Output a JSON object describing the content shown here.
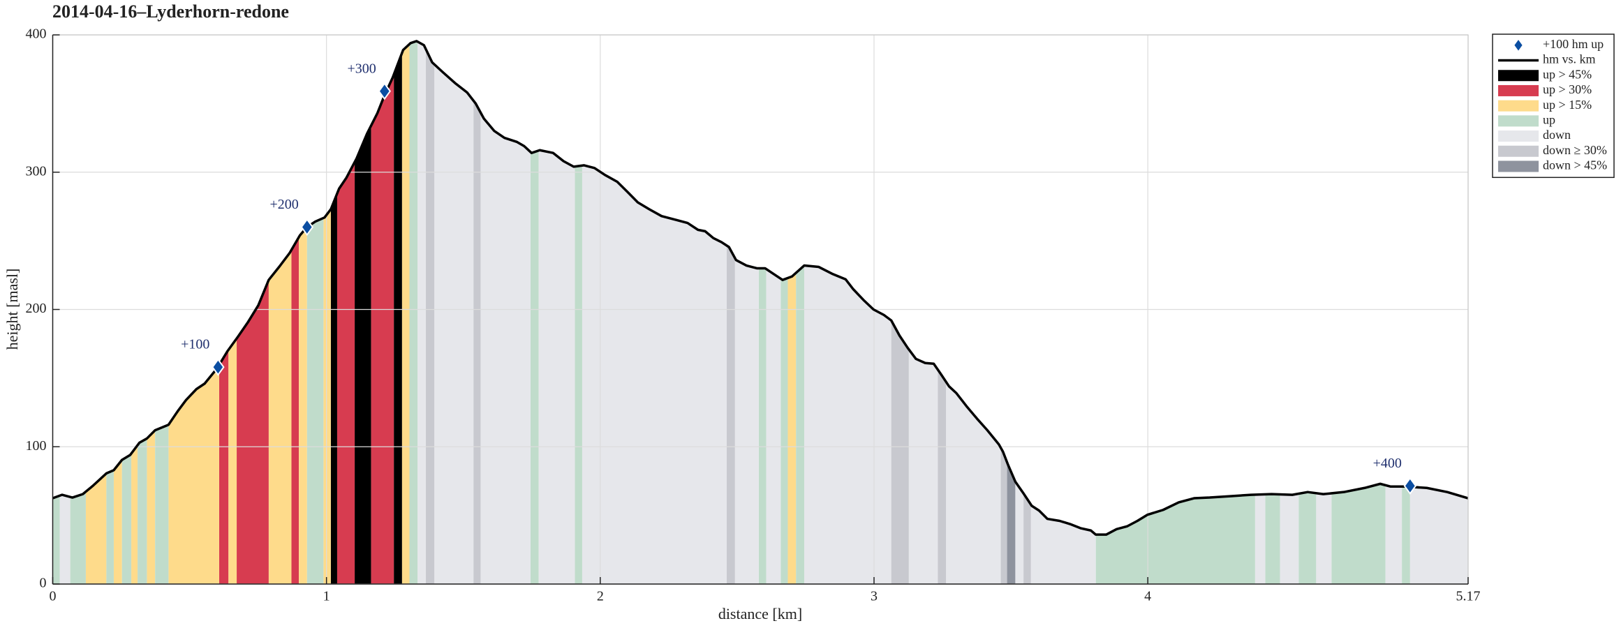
{
  "chart_data": {
    "type": "profile",
    "title": "2014-04-16–Lyderhorn-redone",
    "xlabel": "distance [km]",
    "ylabel": "height [masl]",
    "xlim": [
      0,
      5.17
    ],
    "ylim": [
      0,
      400
    ],
    "xticks": [
      0,
      1,
      2,
      3,
      4,
      5.17
    ],
    "yticks": [
      0,
      100,
      200,
      300,
      400
    ],
    "grid": true,
    "legend": "northeastoutside",
    "markers": {
      "name": "+100 hm up",
      "color": "#0b4ea2",
      "x": [
        0.604,
        0.929,
        1.212,
        4.958
      ],
      "y": [
        158,
        260,
        359,
        71.5
      ],
      "labels": [
        "+100",
        "+200",
        "+300",
        "+400"
      ]
    },
    "line": {
      "name": "hm vs. km",
      "color": "#000000",
      "x": [
        0,
        0.034,
        0.072,
        0.11,
        0.147,
        0.196,
        0.223,
        0.253,
        0.283,
        0.317,
        0.344,
        0.374,
        0.423,
        0.457,
        0.487,
        0.525,
        0.555,
        0.6,
        0.638,
        0.676,
        0.714,
        0.751,
        0.789,
        0.827,
        0.865,
        0.903,
        0.929,
        0.959,
        0.993,
        1.016,
        1.046,
        1.073,
        1.11,
        1.148,
        1.186,
        1.212,
        1.242,
        1.28,
        1.307,
        1.329,
        1.356,
        1.386,
        1.424,
        1.469,
        1.514,
        1.545,
        1.575,
        1.613,
        1.65,
        1.696,
        1.722,
        1.749,
        1.779,
        1.828,
        1.866,
        1.903,
        1.941,
        1.979,
        2.017,
        2.062,
        2.1,
        2.137,
        2.179,
        2.224,
        2.281,
        2.319,
        2.357,
        2.383,
        2.413,
        2.443,
        2.47,
        2.496,
        2.534,
        2.572,
        2.602,
        2.632,
        2.666,
        2.7,
        2.745,
        2.798,
        2.847,
        2.896,
        2.923,
        2.961,
        2.998,
        3.036,
        3.063,
        3.093,
        3.123,
        3.153,
        3.187,
        3.218,
        3.244,
        3.274,
        3.301,
        3.338,
        3.376,
        3.414,
        3.456,
        3.471,
        3.49,
        3.516,
        3.546,
        3.576,
        3.603,
        3.633,
        3.678,
        3.716,
        3.754,
        3.792,
        3.81,
        3.848,
        3.886,
        3.924,
        3.962,
        3.999,
        4.056,
        4.113,
        4.169,
        4.226,
        4.301,
        4.377,
        4.452,
        4.528,
        4.584,
        4.641,
        4.716,
        4.792,
        4.849,
        4.887,
        4.943,
        5.019,
        5.094,
        5.17
      ],
      "y": [
        62.5,
        65,
        63,
        65.5,
        71.6,
        80.6,
        82.9,
        90.4,
        94,
        103,
        106,
        112,
        116,
        126,
        134,
        142,
        146,
        157,
        169.5,
        180,
        191,
        203,
        221.5,
        231,
        241,
        254,
        260,
        264,
        267,
        273,
        288,
        296,
        310,
        328,
        343,
        356,
        369,
        389,
        394,
        395.5,
        392.5,
        380,
        373,
        365,
        358,
        350,
        339,
        330,
        325,
        322,
        319,
        314,
        316,
        314,
        308,
        304,
        305,
        303,
        298,
        293,
        285.5,
        278,
        273,
        268,
        265,
        263,
        258,
        257,
        252,
        249,
        245.5,
        236,
        232,
        230,
        230,
        226,
        221.5,
        224,
        232,
        231,
        226,
        222,
        215,
        207,
        200,
        196,
        192,
        181,
        172,
        164,
        161,
        160.5,
        153,
        144,
        139,
        129.5,
        120.5,
        112,
        101.7,
        96.4,
        86.6,
        74.6,
        66,
        57,
        53.5,
        47.5,
        46,
        43.7,
        40.7,
        39,
        36,
        36,
        40,
        42,
        46,
        50.5,
        54,
        59.5,
        62.5,
        63,
        64,
        65,
        65.5,
        65,
        67,
        65.5,
        67,
        70,
        73,
        71,
        71,
        70,
        67,
        62.5
      ]
    },
    "bands": [
      {
        "name": "up > 45%",
        "color": "#000000",
        "segments": [
          [
            1.016,
            1.039
          ],
          [
            1.103,
            1.163
          ],
          [
            1.246,
            1.276
          ]
        ]
      },
      {
        "name": "up > 30%",
        "color": "#d73c50",
        "segments": [
          [
            0.608,
            0.642
          ],
          [
            0.672,
            0.789
          ],
          [
            0.872,
            0.899
          ],
          [
            1.039,
            1.103
          ],
          [
            1.163,
            1.246
          ]
        ]
      },
      {
        "name": "up > 15%",
        "color": "#fedb8b",
        "segments": [
          [
            0.121,
            0.196
          ],
          [
            0.223,
            0.253
          ],
          [
            0.287,
            0.31
          ],
          [
            0.344,
            0.374
          ],
          [
            0.423,
            0.608
          ],
          [
            0.642,
            0.672
          ],
          [
            0.789,
            0.872
          ],
          [
            0.899,
            0.929
          ],
          [
            0.989,
            1.016
          ],
          [
            1.276,
            1.303
          ],
          [
            2.685,
            2.715
          ]
        ]
      },
      {
        "name": "up",
        "color": "#c0dccb",
        "segments": [
          [
            0,
            0.026
          ],
          [
            0.064,
            0.121
          ],
          [
            0.196,
            0.223
          ],
          [
            0.253,
            0.287
          ],
          [
            0.31,
            0.344
          ],
          [
            0.374,
            0.423
          ],
          [
            0.929,
            0.989
          ],
          [
            1.303,
            1.333
          ],
          [
            1.745,
            1.775
          ],
          [
            1.907,
            1.934
          ],
          [
            2.579,
            2.606
          ],
          [
            2.659,
            2.685
          ],
          [
            2.715,
            2.745
          ],
          [
            3.81,
            4.392
          ],
          [
            4.429,
            4.483
          ],
          [
            4.551,
            4.615
          ],
          [
            4.671,
            4.868
          ],
          [
            4.928,
            4.958
          ]
        ]
      },
      {
        "name": "down",
        "color": "#e6e7eb",
        "segments": [
          [
            0.026,
            0.064
          ],
          [
            1.333,
            1.363
          ],
          [
            1.394,
            1.537
          ],
          [
            1.563,
            1.745
          ],
          [
            1.775,
            1.907
          ],
          [
            1.934,
            2.462
          ],
          [
            2.492,
            2.579
          ],
          [
            2.606,
            2.659
          ],
          [
            2.745,
            3.063
          ],
          [
            3.127,
            3.233
          ],
          [
            3.263,
            3.463
          ],
          [
            3.516,
            3.546
          ],
          [
            3.573,
            3.81
          ],
          [
            4.392,
            4.429
          ],
          [
            4.483,
            4.551
          ],
          [
            4.615,
            4.671
          ],
          [
            4.868,
            4.928
          ],
          [
            4.958,
            5.17
          ]
        ]
      },
      {
        "name": "down ≥ 30%",
        "color": "#c8c9cf",
        "segments": [
          [
            1.363,
            1.394
          ],
          [
            1.537,
            1.563
          ],
          [
            2.462,
            2.492
          ],
          [
            3.063,
            3.127
          ],
          [
            3.233,
            3.263
          ],
          [
            3.463,
            3.486
          ],
          [
            3.546,
            3.573
          ]
        ]
      },
      {
        "name": "down > 45%",
        "color": "#8e939e",
        "segments": [
          [
            3.486,
            3.516
          ]
        ]
      }
    ]
  }
}
